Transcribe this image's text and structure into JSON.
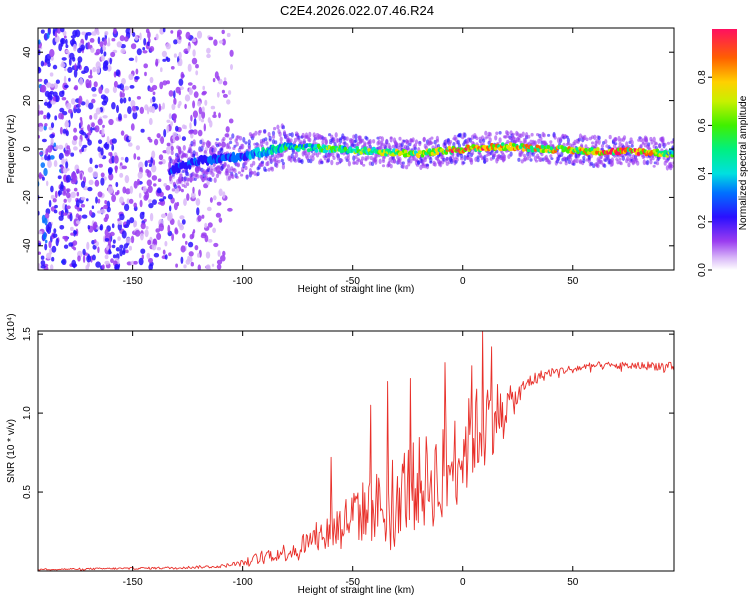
{
  "title": "C2E4.2026.022.07.46.R24",
  "colors": {
    "snr_line": "#e8302a",
    "spectrogram_low": "#b07cf0",
    "spectrogram_mid": "#1a1aff",
    "spectrogram_high": "#ff2020"
  },
  "chart_data": [
    {
      "type": "heatmap",
      "title": "",
      "xlabel": "Height of straight line (km)",
      "ylabel": "Frequency (Hz)",
      "xlim": [
        -193,
        96
      ],
      "ylim": [
        -50,
        50
      ],
      "xticks": [
        -150,
        -100,
        -50,
        0,
        50
      ],
      "yticks": [
        -40,
        -20,
        0,
        20,
        40
      ],
      "colorbar": {
        "label": "Normalized spectral amplitude",
        "range": [
          0,
          1
        ],
        "ticks": [
          0.0,
          0.2,
          0.4,
          0.6,
          0.8
        ],
        "tick_labels": [
          "0.0",
          "0.2",
          "0.4",
          "0.6",
          "0.8"
        ],
        "colormap": "rainbow (violet-blue-cyan-green-yellow-red)"
      },
      "ridge": {
        "x": [
          -133,
          -120,
          -100,
          -80,
          -60,
          -40,
          -20,
          0,
          20,
          40,
          60,
          80,
          96
        ],
        "freq_hz": [
          -9,
          -5,
          -3,
          1,
          0,
          -1,
          -2,
          0,
          1,
          0,
          -1,
          -1,
          -2
        ],
        "amplitude": [
          0.2,
          0.25,
          0.3,
          0.45,
          0.55,
          0.6,
          0.7,
          0.85,
          0.75,
          0.7,
          0.8,
          0.9,
          0.5
        ]
      },
      "noise_region": {
        "x_from": -193,
        "x_to": -105,
        "amplitude_range": [
          0.0,
          0.25
        ]
      }
    },
    {
      "type": "line",
      "title": "",
      "xlabel": "Height of straight line (km)",
      "ylabel": "SNR (10 * v/v)",
      "y_multiplier": "(x10⁴)",
      "xlim": [
        -193,
        96
      ],
      "ylim": [
        0,
        1.52
      ],
      "xticks": [
        -150,
        -100,
        -50,
        0,
        50
      ],
      "yticks": [
        0.5,
        1.0,
        1.5
      ],
      "ytick_labels": [
        "0.5",
        "1.0",
        "1.5"
      ],
      "series": [
        {
          "name": "SNR",
          "x": [
            -193,
            -160,
            -130,
            -110,
            -100,
            -90,
            -80,
            -70,
            -60,
            -50,
            -40,
            -30,
            -20,
            -10,
            0,
            5,
            10,
            15,
            20,
            25,
            30,
            40,
            50,
            60,
            70,
            80,
            90,
            96
          ],
          "values": [
            0.01,
            0.015,
            0.02,
            0.03,
            0.05,
            0.1,
            0.12,
            0.18,
            0.25,
            0.35,
            0.4,
            0.5,
            0.55,
            0.6,
            0.75,
            0.85,
            0.95,
            1.0,
            1.05,
            1.1,
            1.2,
            1.26,
            1.28,
            1.3,
            1.3,
            1.3,
            1.3,
            1.28
          ],
          "spread": [
            0.005,
            0.006,
            0.008,
            0.01,
            0.02,
            0.04,
            0.06,
            0.09,
            0.13,
            0.18,
            0.22,
            0.28,
            0.3,
            0.32,
            0.3,
            0.3,
            0.32,
            0.22,
            0.12,
            0.08,
            0.05,
            0.03,
            0.025,
            0.025,
            0.025,
            0.025,
            0.03,
            0.04
          ],
          "spikes": [
            {
              "x": -60,
              "y": 0.72
            },
            {
              "x": -42,
              "y": 1.05
            },
            {
              "x": -34,
              "y": 1.2
            },
            {
              "x": -24,
              "y": 1.22
            },
            {
              "x": -8,
              "y": 1.32
            },
            {
              "x": 4,
              "y": 1.3
            },
            {
              "x": 9,
              "y": 1.52
            },
            {
              "x": 13,
              "y": 1.42
            }
          ]
        }
      ]
    }
  ]
}
